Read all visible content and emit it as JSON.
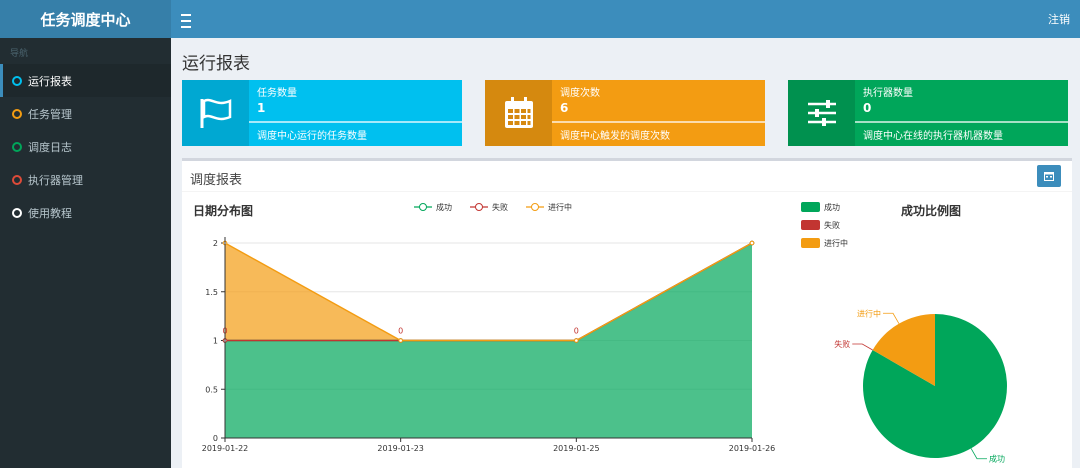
{
  "app": {
    "brand": "任务调度中心",
    "logout": "注销"
  },
  "sidebar": {
    "header": "导航",
    "items": [
      {
        "label": "运行报表",
        "color": "#00c0ef",
        "active": true
      },
      {
        "label": "任务管理",
        "color": "#f39c12",
        "active": false
      },
      {
        "label": "调度日志",
        "color": "#00a65a",
        "active": false
      },
      {
        "label": "执行器管理",
        "color": "#dd4b39",
        "active": false
      },
      {
        "label": "使用教程",
        "color": "#ffffff",
        "active": false
      }
    ]
  },
  "page": {
    "title": "运行报表"
  },
  "info_boxes": [
    {
      "label": "任务数量",
      "value": "1",
      "desc": "调度中心运行的任务数量",
      "color": "#00c0ef",
      "icon": "flag-icon"
    },
    {
      "label": "调度次数",
      "value": "6",
      "desc": "调度中心触发的调度次数",
      "color": "#f39c12",
      "icon": "calendar-icon"
    },
    {
      "label": "执行器数量",
      "value": "0",
      "desc": "调度中心在线的执行器机器数量",
      "color": "#00a65a",
      "icon": "sliders-icon"
    }
  ],
  "report": {
    "title": "调度报表"
  },
  "chart_data": [
    {
      "type": "area",
      "title": "日期分布图",
      "categories": [
        "2019-01-22",
        "2019-01-23",
        "2019-01-25",
        "2019-01-26"
      ],
      "series": [
        {
          "name": "成功",
          "color": "#00a65a",
          "values": [
            1,
            1,
            1,
            2
          ]
        },
        {
          "name": "失败",
          "color": "#c23531",
          "values": [
            0,
            0,
            0,
            0
          ]
        },
        {
          "name": "进行中",
          "color": "#f39c12",
          "values": [
            1,
            0,
            0,
            0
          ]
        }
      ],
      "data_labels": [
        "0",
        "0",
        "0",
        "0"
      ],
      "yticks": [
        "0",
        "0.5",
        "1",
        "1.5",
        "2"
      ],
      "ylim": [
        0,
        2
      ],
      "grid": true,
      "legend": "top-center"
    },
    {
      "type": "pie",
      "title": "成功比例图",
      "slices": [
        {
          "name": "成功",
          "color": "#00a65a",
          "value": 5
        },
        {
          "name": "失败",
          "color": "#c23531",
          "value": 0
        },
        {
          "name": "进行中",
          "color": "#f39c12",
          "value": 1
        }
      ],
      "legend": "top-left"
    }
  ]
}
